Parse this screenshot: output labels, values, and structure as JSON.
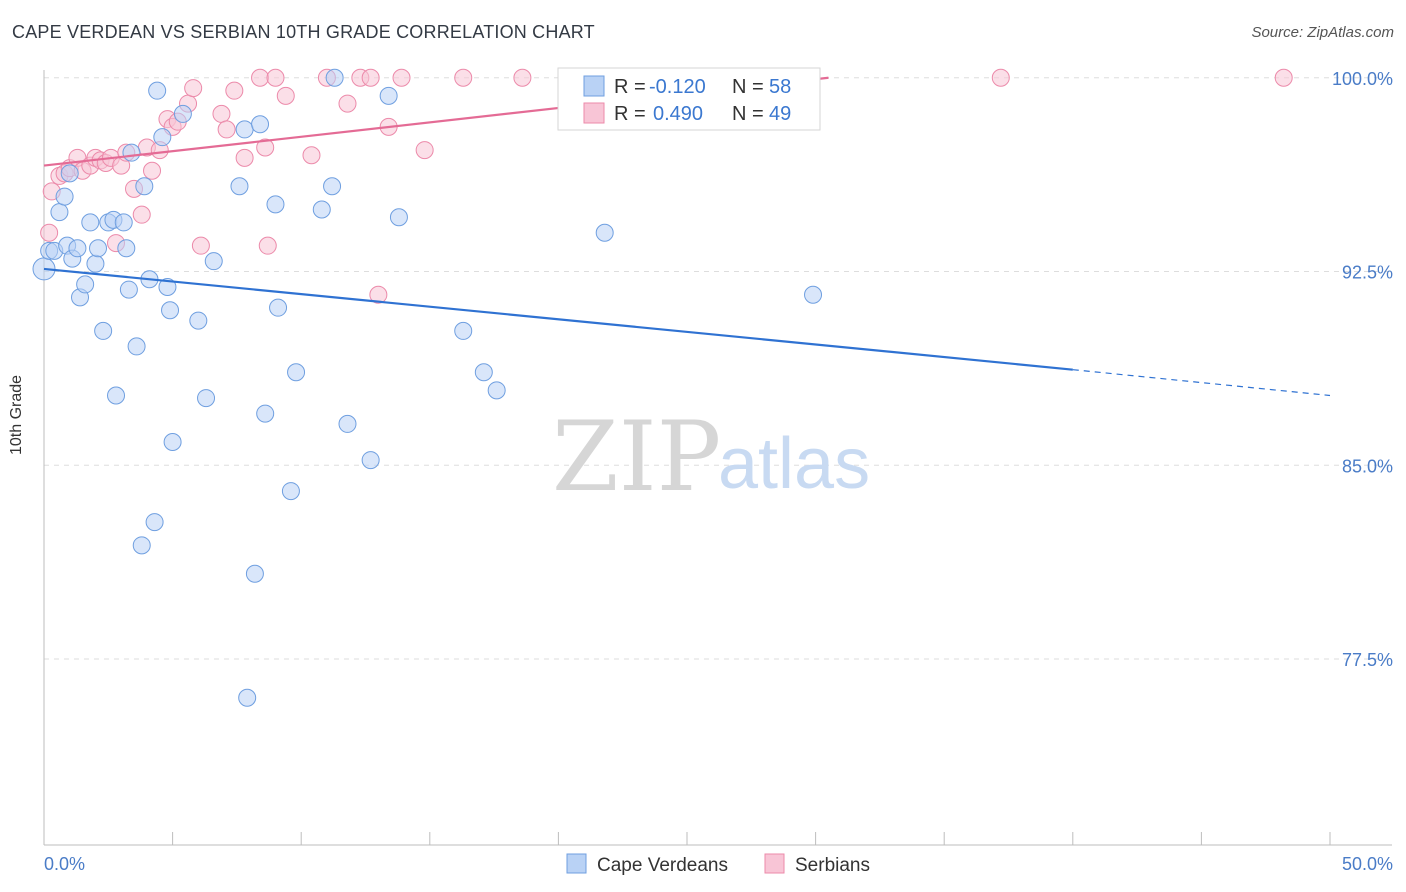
{
  "header": {
    "title": "CAPE VERDEAN VS SERBIAN 10TH GRADE CORRELATION CHART",
    "source": "Source: ZipAtlas.com"
  },
  "watermark": {
    "zip": "ZIP",
    "atlas": "atlas"
  },
  "colors": {
    "blue_fill": "#b9d2f5",
    "blue_stroke": "#6f9fe0",
    "blue_line": "#2f72d2",
    "pink_fill": "#f8c5d6",
    "pink_stroke": "#ec8aaa",
    "pink_line": "#e46b95",
    "axis_text": "#4a7cc7",
    "grid": "#dddddd"
  },
  "legend": {
    "rows": [
      {
        "r_label": "R =",
        "r_value": "-0.120",
        "n_label": "N =",
        "n_value": "58"
      },
      {
        "r_label": "R =",
        "r_value": "0.490",
        "n_label": "N =",
        "n_value": "49"
      }
    ]
  },
  "bottom_legend": [
    "Cape Verdeans",
    "Serbians"
  ],
  "chart_data": {
    "type": "scatter",
    "title": "CAPE VERDEAN VS SERBIAN 10TH GRADE CORRELATION CHART",
    "xlabel": "",
    "ylabel": "10th Grade",
    "xlim": [
      0,
      50
    ],
    "ylim": [
      70.3,
      100.3
    ],
    "x_tick_labels": [
      "0.0%",
      "50.0%"
    ],
    "y_ticks": [
      {
        "value": 100.0,
        "label": "100.0%"
      },
      {
        "value": 92.5,
        "label": "92.5%"
      },
      {
        "value": 85.0,
        "label": "85.0%"
      },
      {
        "value": 77.5,
        "label": "77.5%"
      }
    ],
    "series": [
      {
        "name": "Cape Verdeans",
        "R": -0.12,
        "N": 58,
        "trend": {
          "x0": 0,
          "y0": 92.6,
          "x1": 40,
          "y1": 88.7,
          "dash_to_x": 50,
          "dash_to_y": 87.7
        },
        "points": [
          [
            0.0,
            92.6
          ],
          [
            0.2,
            93.3
          ],
          [
            0.4,
            93.3
          ],
          [
            0.6,
            94.8
          ],
          [
            0.8,
            95.4
          ],
          [
            0.9,
            93.5
          ],
          [
            1.0,
            96.3
          ],
          [
            1.1,
            93.0
          ],
          [
            1.3,
            93.4
          ],
          [
            1.4,
            91.5
          ],
          [
            1.6,
            92.0
          ],
          [
            1.8,
            94.4
          ],
          [
            2.0,
            92.8
          ],
          [
            2.1,
            93.4
          ],
          [
            2.3,
            90.2
          ],
          [
            2.5,
            94.4
          ],
          [
            2.7,
            94.5
          ],
          [
            2.8,
            87.7
          ],
          [
            3.1,
            94.4
          ],
          [
            3.2,
            93.4
          ],
          [
            3.3,
            91.8
          ],
          [
            3.4,
            97.1
          ],
          [
            3.6,
            89.6
          ],
          [
            3.8,
            81.9
          ],
          [
            3.9,
            95.8
          ],
          [
            4.1,
            92.2
          ],
          [
            4.3,
            82.8
          ],
          [
            4.4,
            99.5
          ],
          [
            4.6,
            97.7
          ],
          [
            4.8,
            91.9
          ],
          [
            4.9,
            91.0
          ],
          [
            5.0,
            85.9
          ],
          [
            5.4,
            98.6
          ],
          [
            6.0,
            90.6
          ],
          [
            6.3,
            87.6
          ],
          [
            6.6,
            92.9
          ],
          [
            7.6,
            95.8
          ],
          [
            7.8,
            98.0
          ],
          [
            7.9,
            76.0
          ],
          [
            8.2,
            80.8
          ],
          [
            8.4,
            98.2
          ],
          [
            8.6,
            87.0
          ],
          [
            9.0,
            95.1
          ],
          [
            9.1,
            91.1
          ],
          [
            9.6,
            84.0
          ],
          [
            9.8,
            88.6
          ],
          [
            10.8,
            94.9
          ],
          [
            11.2,
            95.8
          ],
          [
            11.3,
            100.0
          ],
          [
            11.8,
            86.6
          ],
          [
            12.7,
            85.2
          ],
          [
            13.4,
            99.3
          ],
          [
            13.8,
            94.6
          ],
          [
            16.3,
            90.2
          ],
          [
            17.1,
            88.6
          ],
          [
            17.6,
            87.9
          ],
          [
            21.8,
            94.0
          ],
          [
            29.9,
            91.6
          ]
        ]
      },
      {
        "name": "Serbians",
        "R": 0.49,
        "N": 49,
        "trend": {
          "x0": 0,
          "y0": 96.6,
          "x1": 30.5,
          "y1": 100.0
        },
        "points": [
          [
            0.2,
            94.0
          ],
          [
            0.3,
            95.6
          ],
          [
            0.6,
            96.2
          ],
          [
            0.8,
            96.3
          ],
          [
            1.0,
            96.5
          ],
          [
            1.3,
            96.9
          ],
          [
            1.5,
            96.4
          ],
          [
            1.8,
            96.6
          ],
          [
            2.0,
            96.9
          ],
          [
            2.2,
            96.8
          ],
          [
            2.4,
            96.7
          ],
          [
            2.6,
            96.9
          ],
          [
            2.8,
            93.6
          ],
          [
            3.0,
            96.6
          ],
          [
            3.2,
            97.1
          ],
          [
            3.5,
            95.7
          ],
          [
            3.8,
            94.7
          ],
          [
            4.0,
            97.3
          ],
          [
            4.2,
            96.4
          ],
          [
            4.5,
            97.2
          ],
          [
            4.8,
            98.4
          ],
          [
            5.0,
            98.1
          ],
          [
            5.2,
            98.3
          ],
          [
            5.6,
            99.0
          ],
          [
            5.8,
            99.6
          ],
          [
            6.1,
            93.5
          ],
          [
            6.9,
            98.6
          ],
          [
            7.1,
            98.0
          ],
          [
            7.4,
            99.5
          ],
          [
            7.8,
            96.9
          ],
          [
            8.4,
            100.0
          ],
          [
            8.6,
            97.3
          ],
          [
            8.7,
            93.5
          ],
          [
            9.0,
            100.0
          ],
          [
            9.4,
            99.3
          ],
          [
            10.4,
            97.0
          ],
          [
            11.0,
            100.0
          ],
          [
            11.8,
            99.0
          ],
          [
            12.3,
            100.0
          ],
          [
            12.7,
            100.0
          ],
          [
            13.0,
            91.6
          ],
          [
            13.4,
            98.1
          ],
          [
            13.9,
            100.0
          ],
          [
            14.8,
            97.2
          ],
          [
            16.3,
            100.0
          ],
          [
            18.6,
            100.0
          ],
          [
            20.6,
            100.0
          ],
          [
            37.2,
            100.0
          ],
          [
            48.2,
            100.0
          ]
        ]
      }
    ]
  }
}
